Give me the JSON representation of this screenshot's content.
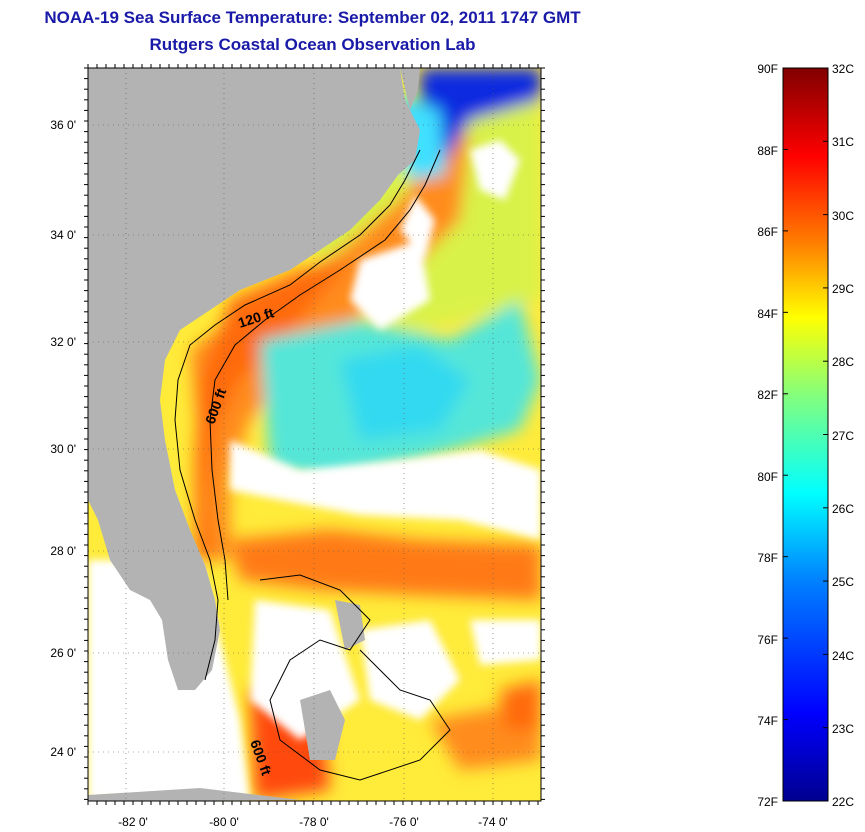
{
  "header": {
    "title": "NOAA-19 Sea Surface Temperature:  September 02, 2011 1747 GMT",
    "subtitle": "Rutgers Coastal Ocean Observation Lab"
  },
  "map": {
    "lat_labels": [
      "36 0'",
      "34 0'",
      "32 0'",
      "30 0'",
      "28 0'",
      "26 0'",
      "24 0'"
    ],
    "lon_labels": [
      "-82 0'",
      "-80 0'",
      "-78 0'",
      "-76 0'",
      "-74 0'"
    ],
    "contour_labels": [
      "120 ft",
      "600 ft",
      "600 ft"
    ],
    "land_color": "#b3b3b3",
    "cloud_color": "#ffffff"
  },
  "colorbar": {
    "f_labels": [
      "90F",
      "88F",
      "86F",
      "84F",
      "82F",
      "80F",
      "78F",
      "76F",
      "74F",
      "72F"
    ],
    "c_labels": [
      "32C",
      "31C",
      "30C",
      "29C",
      "28C",
      "27C",
      "26C",
      "25C",
      "24C",
      "23C",
      "22C"
    ],
    "colors": [
      "#00008f",
      "#0000ff",
      "#0080ff",
      "#00ffff",
      "#80ff80",
      "#ffff00",
      "#ff8000",
      "#ff0000",
      "#800000"
    ]
  }
}
